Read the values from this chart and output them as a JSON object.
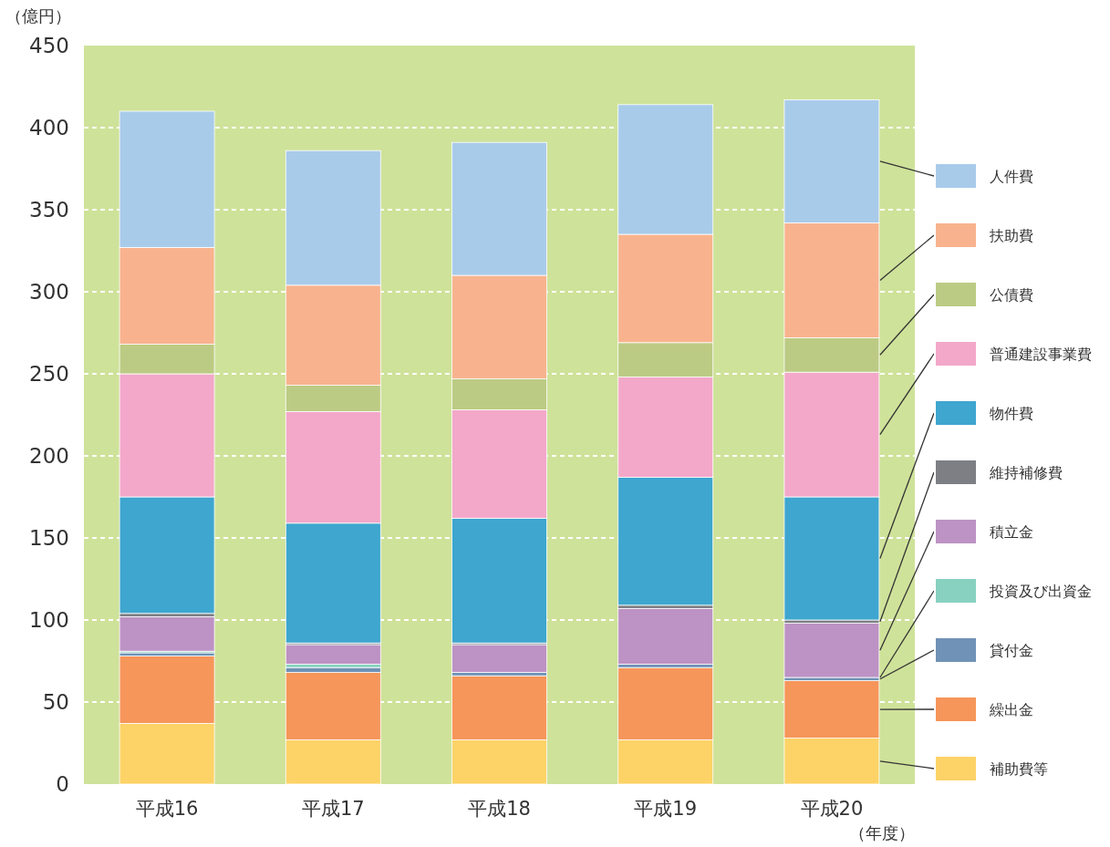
{
  "chart_data": {
    "type": "bar",
    "stacked": true,
    "ylabel": "（億円）",
    "annotations": [
      "（年度）"
    ],
    "categories": [
      "平成16",
      "平成17",
      "平成18",
      "平成19",
      "平成20"
    ],
    "ylim": [
      0,
      450
    ],
    "yticks": [
      0,
      50,
      100,
      150,
      200,
      250,
      300,
      350,
      400,
      450
    ],
    "grid": "y",
    "legend": "right",
    "series": [
      {
        "name": "補助費等",
        "color": "#fdd367",
        "values": [
          37,
          27,
          27,
          27,
          28
        ]
      },
      {
        "name": "繰出金",
        "color": "#f6965a",
        "values": [
          41,
          41,
          39,
          44,
          35
        ]
      },
      {
        "name": "貸付金",
        "color": "#6f92b6",
        "values": [
          2,
          3,
          2,
          2,
          2
        ]
      },
      {
        "name": "投資及び出資金",
        "color": "#88d1c0",
        "values": [
          1,
          2,
          0,
          0,
          0
        ]
      },
      {
        "name": "積立金",
        "color": "#bd92c4",
        "values": [
          21,
          12,
          17,
          34,
          33
        ]
      },
      {
        "name": "維持補修費",
        "color": "#7d7f84",
        "values": [
          2,
          1,
          1,
          2,
          2
        ]
      },
      {
        "name": "物件費",
        "color": "#3ea6cf",
        "values": [
          71,
          73,
          76,
          78,
          75
        ]
      },
      {
        "name": "普通建設事業費",
        "color": "#f3a8c9",
        "values": [
          75,
          68,
          66,
          61,
          76
        ]
      },
      {
        "name": "公債費",
        "color": "#bccb84",
        "values": [
          18,
          16,
          19,
          21,
          21
        ]
      },
      {
        "name": "扶助費",
        "color": "#f8b38e",
        "values": [
          59,
          61,
          63,
          66,
          70
        ]
      },
      {
        "name": "人件費",
        "color": "#a9cbea",
        "values": [
          83,
          82,
          81,
          79,
          75
        ]
      }
    ]
  }
}
